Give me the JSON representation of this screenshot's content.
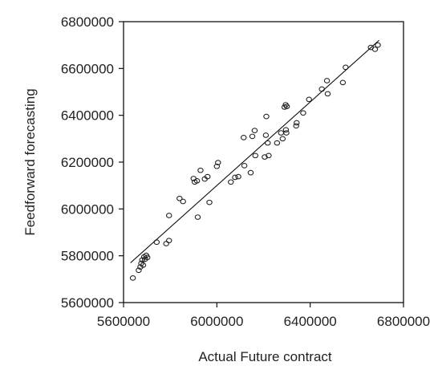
{
  "chart_data": {
    "type": "scatter",
    "title": "",
    "xlabel": "Actual Future contract",
    "ylabel": "Feedforward forecasting",
    "xlim": [
      5600000,
      6800000
    ],
    "ylim": [
      5600000,
      6800000
    ],
    "x_ticks": [
      5600000,
      6000000,
      6400000,
      6800000
    ],
    "y_ticks": [
      5600000,
      5800000,
      6000000,
      6200000,
      6400000,
      6600000,
      6800000
    ],
    "x_tick_labels": [
      "5600000",
      "6000000",
      "6400000",
      "6800000"
    ],
    "y_tick_labels": [
      "5600000",
      "5800000",
      "6000000",
      "6200000",
      "6400000",
      "6600000",
      "6800000"
    ],
    "grid": false,
    "legend": "none",
    "marker": "open-circle",
    "series": [
      {
        "points": [
          [
            5640000,
            5705000
          ],
          [
            5665000,
            5738000
          ],
          [
            5672000,
            5752000
          ],
          [
            5676000,
            5768000
          ],
          [
            5680000,
            5782000
          ],
          [
            5684000,
            5760000
          ],
          [
            5688000,
            5795000
          ],
          [
            5692000,
            5785000
          ],
          [
            5697000,
            5802000
          ],
          [
            5702000,
            5793000
          ],
          [
            5742000,
            5858000
          ],
          [
            5783000,
            5852000
          ],
          [
            5795000,
            5865000
          ],
          [
            5795000,
            5972000
          ],
          [
            5840000,
            6045000
          ],
          [
            5855000,
            6032000
          ],
          [
            5900000,
            6130000
          ],
          [
            5905000,
            6115000
          ],
          [
            5915000,
            6120000
          ],
          [
            5918000,
            5965000
          ],
          [
            5930000,
            6165000
          ],
          [
            5948000,
            6128000
          ],
          [
            5960000,
            6138000
          ],
          [
            5968000,
            6028000
          ],
          [
            6000000,
            6182000
          ],
          [
            6005000,
            6198000
          ],
          [
            6060000,
            6115000
          ],
          [
            6078000,
            6135000
          ],
          [
            6092000,
            6138000
          ],
          [
            6115000,
            6305000
          ],
          [
            6118000,
            6185000
          ],
          [
            6145000,
            6155000
          ],
          [
            6152000,
            6310000
          ],
          [
            6162000,
            6335000
          ],
          [
            6165000,
            6228000
          ],
          [
            6205000,
            6222000
          ],
          [
            6210000,
            6315000
          ],
          [
            6212000,
            6395000
          ],
          [
            6218000,
            6282000
          ],
          [
            6222000,
            6228000
          ],
          [
            6258000,
            6282000
          ],
          [
            6275000,
            6325000
          ],
          [
            6282000,
            6300000
          ],
          [
            6290000,
            6435000
          ],
          [
            6295000,
            6445000
          ],
          [
            6296000,
            6338000
          ],
          [
            6298000,
            6325000
          ],
          [
            6300000,
            6438000
          ],
          [
            6340000,
            6355000
          ],
          [
            6342000,
            6368000
          ],
          [
            6370000,
            6410000
          ],
          [
            6395000,
            6468000
          ],
          [
            6450000,
            6512000
          ],
          [
            6472000,
            6548000
          ],
          [
            6475000,
            6492000
          ],
          [
            6540000,
            6540000
          ],
          [
            6552000,
            6605000
          ],
          [
            6660000,
            6690000
          ],
          [
            6678000,
            6682000
          ],
          [
            6690000,
            6700000
          ]
        ]
      }
    ],
    "trendline": {
      "x": [
        5630000,
        6695000
      ],
      "y": [
        5770000,
        6720000
      ]
    }
  }
}
